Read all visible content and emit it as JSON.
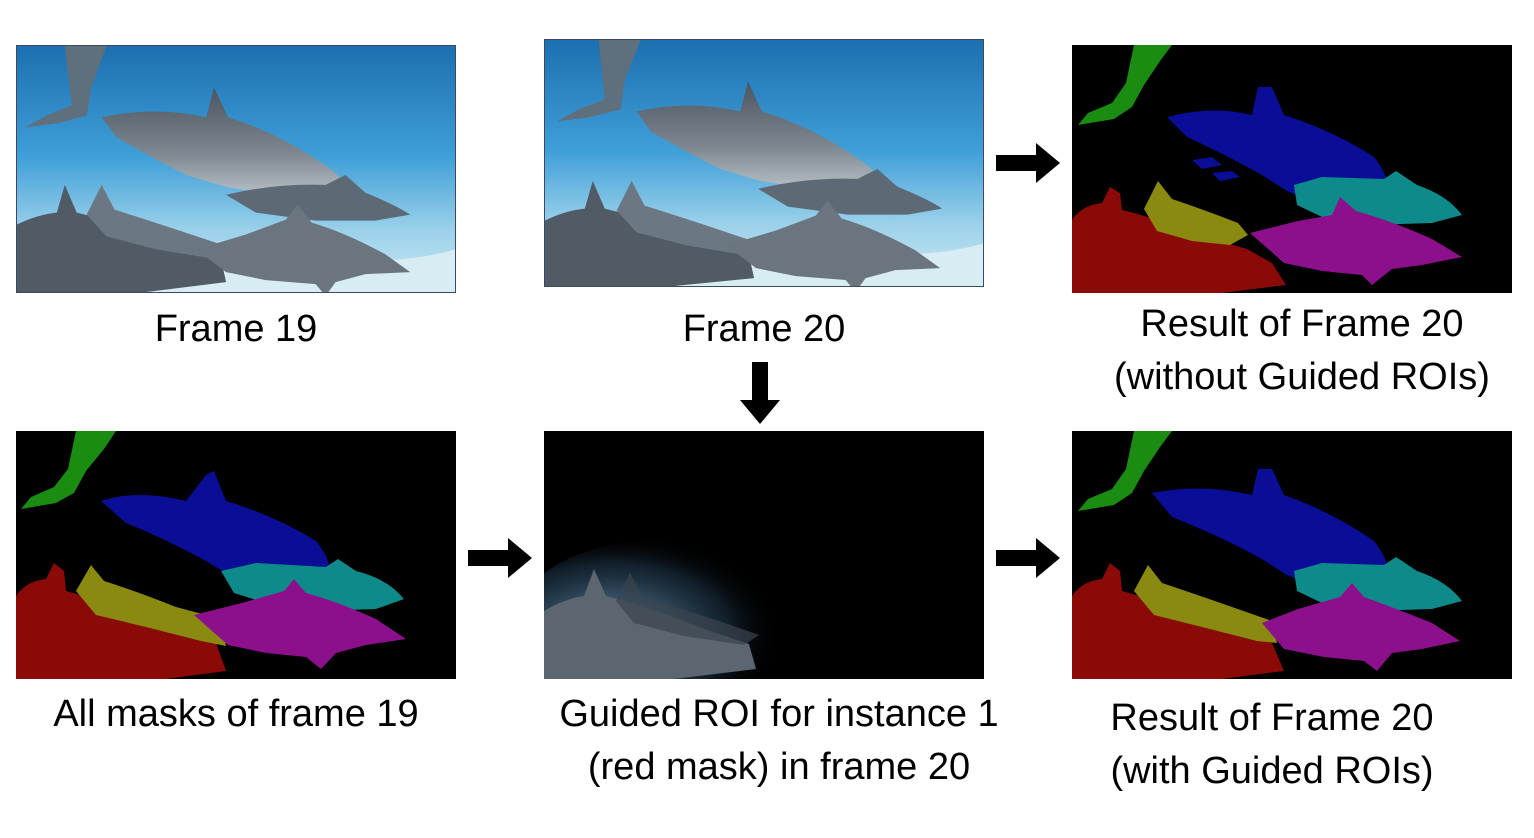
{
  "panels": {
    "frame19": {
      "caption": "Frame 19"
    },
    "frame20": {
      "caption": "Frame 20"
    },
    "result_without": {
      "caption_line1": "Result of Frame 20",
      "caption_line2": "(without Guided ROIs)"
    },
    "masks19": {
      "caption": "All masks of frame 19"
    },
    "guided_roi": {
      "caption_line1": "Guided ROI for instance 1",
      "caption_line2": "(red mask) in frame 20"
    },
    "result_with": {
      "caption_line1": "Result of Frame 20",
      "caption_line2": "(with Guided ROIs)"
    }
  },
  "colors": {
    "instance_green": "#1a8c12",
    "instance_blue": "#0a0e96",
    "instance_cyan": "#0e8a8a",
    "instance_yellow": "#8a8a10",
    "instance_magenta": "#8c108c",
    "instance_red": "#8a0a08",
    "arrow": "#000000"
  }
}
